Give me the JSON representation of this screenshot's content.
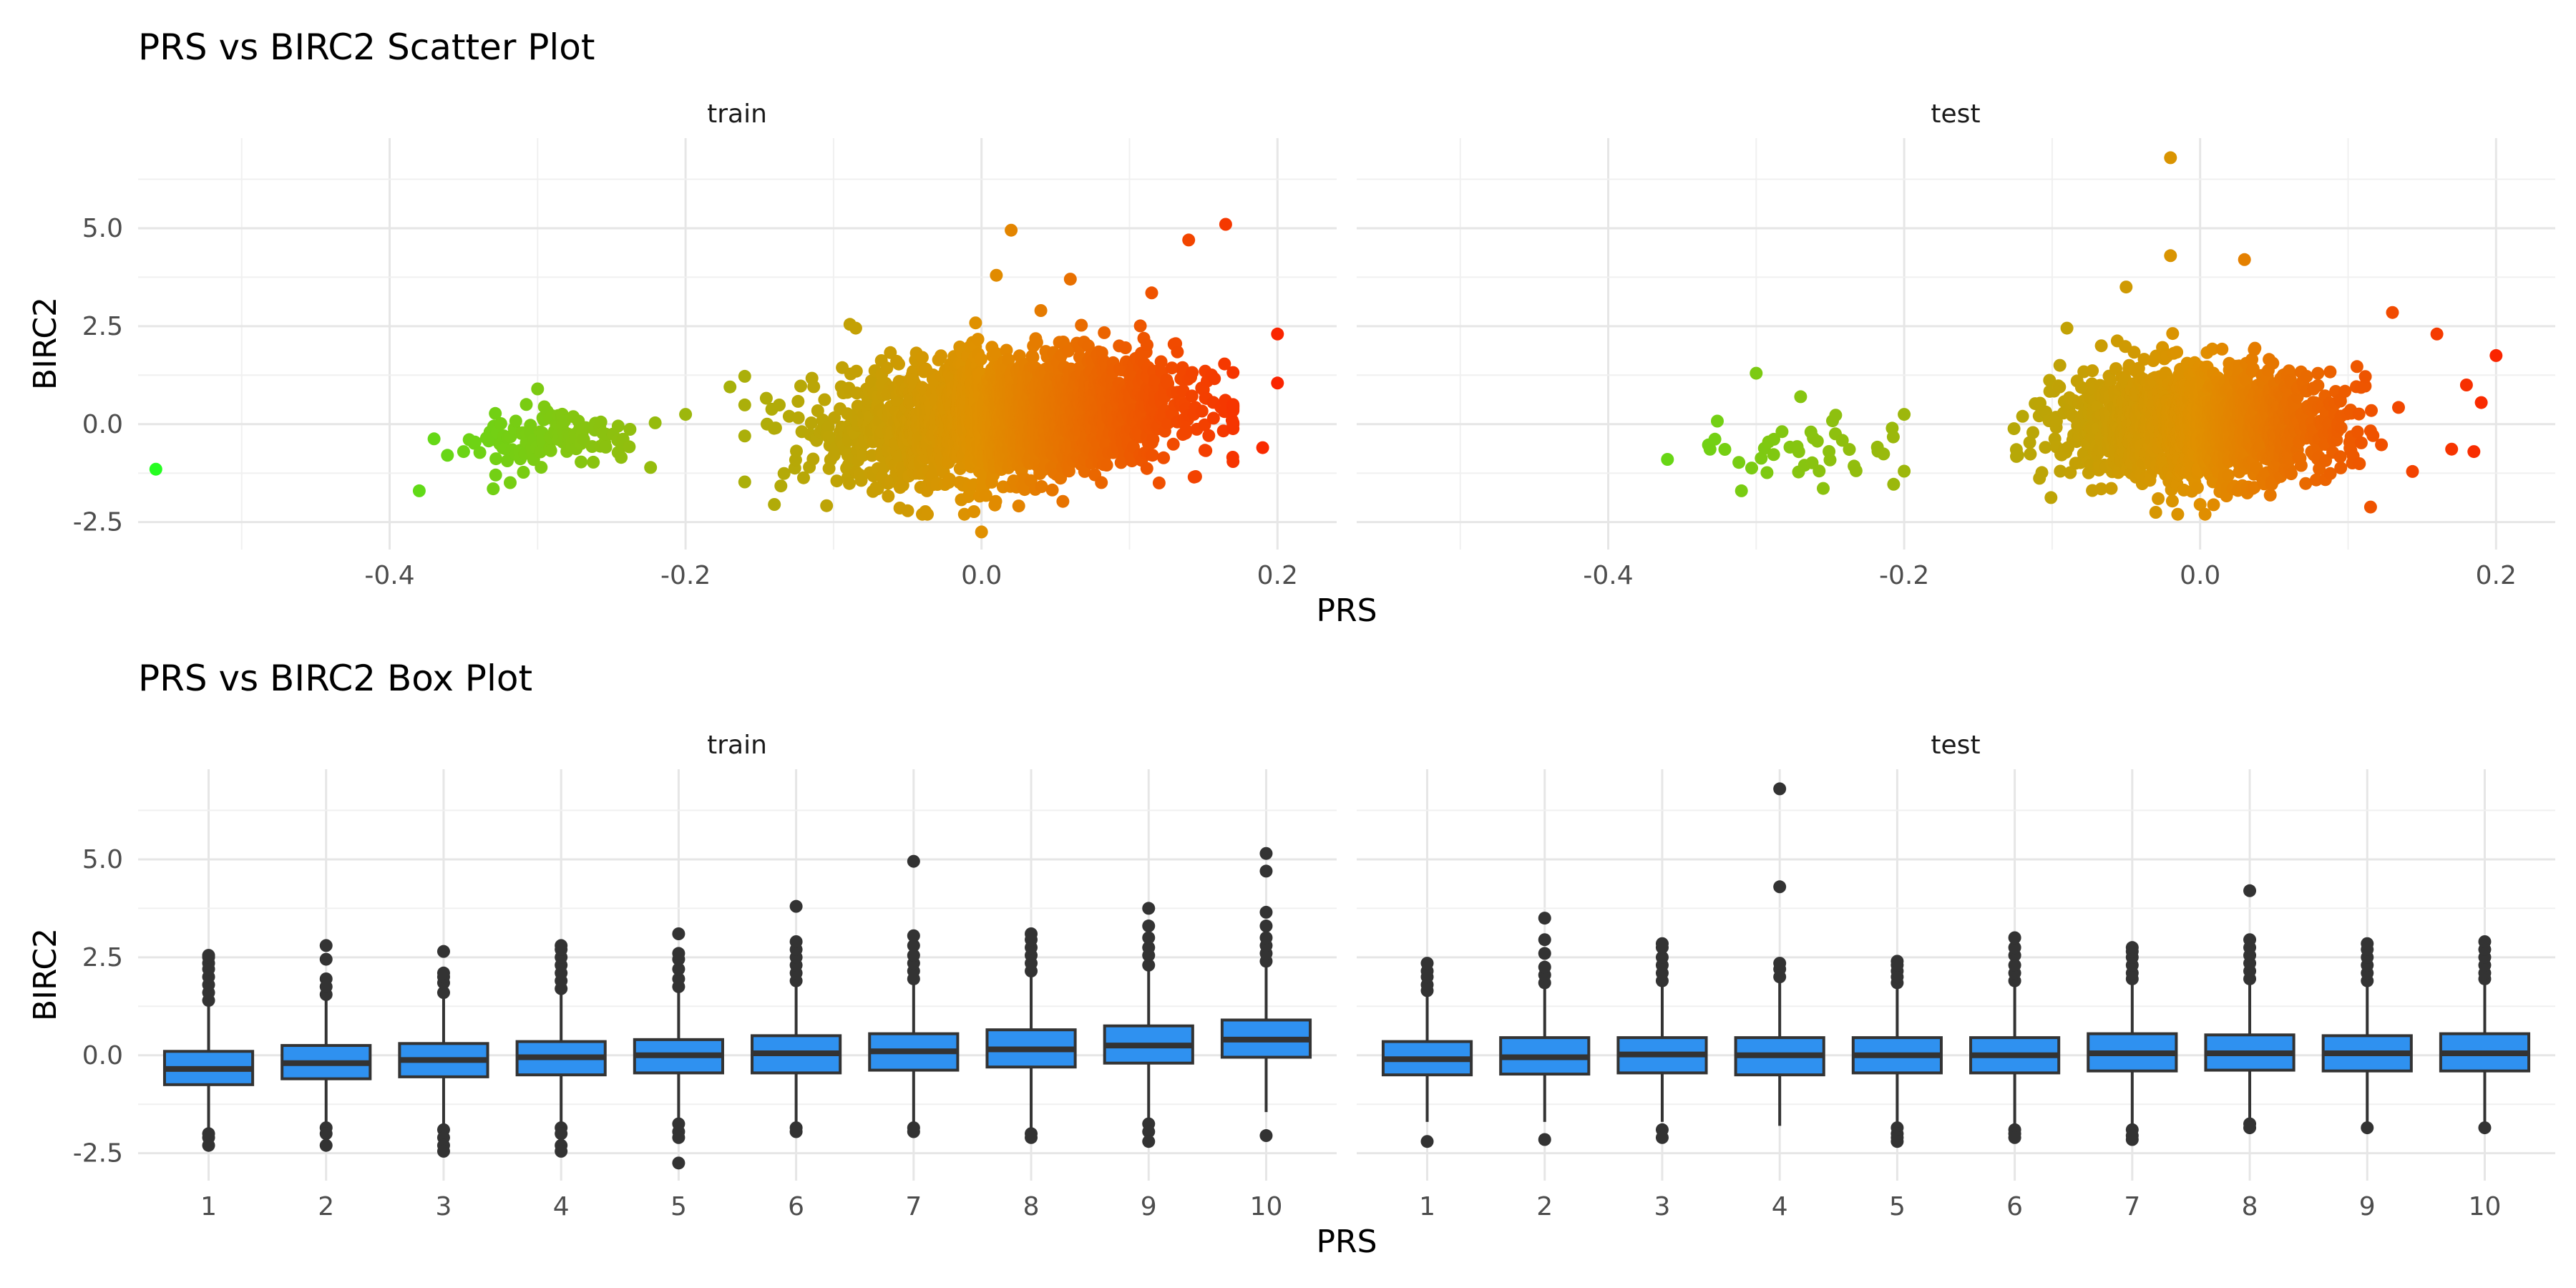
{
  "chart_data": [
    {
      "type": "scatter",
      "title": "PRS vs BIRC2 Scatter Plot",
      "xlabel": "PRS",
      "ylabel": "BIRC2",
      "facets": [
        "train",
        "test"
      ],
      "xlim": [
        -0.57,
        0.24
      ],
      "ylim": [
        -3.2,
        7.3
      ],
      "x_ticks": [
        -0.4,
        -0.2,
        0.0,
        0.2
      ],
      "x_tick_labels": [
        "-0.4",
        "-0.2",
        "0.0",
        "0.2"
      ],
      "y_ticks": [
        -2.5,
        0.0,
        2.5,
        5.0
      ],
      "y_tick_labels": [
        "-2.5",
        "0.0",
        "2.5",
        "5.0"
      ],
      "grid": true,
      "color_gradient": {
        "low": "#22ff22",
        "mid": "#e09000",
        "high": "#ff1000"
      },
      "clusters": {
        "train": [
          {
            "x_mean": 0.02,
            "x_sd": 0.055,
            "y_mean": 0.2,
            "y_sd": 0.75,
            "slope": 3.0
          },
          {
            "x_mean": -0.29,
            "x_sd": 0.03,
            "y_mean": -0.4,
            "y_sd": 0.35,
            "slope": 0.0
          }
        ],
        "test": [
          {
            "x_mean": 0.0,
            "x_sd": 0.045,
            "y_mean": 0.0,
            "y_sd": 0.7,
            "slope": 0.0
          },
          {
            "x_mean": -0.27,
            "x_sd": 0.04,
            "y_mean": -0.6,
            "y_sd": 0.45,
            "slope": 0.0
          }
        ]
      },
      "points": {
        "train": [
          {
            "x": -0.558,
            "y": -1.15
          },
          {
            "x": -0.38,
            "y": -1.7
          },
          {
            "x": -0.33,
            "y": -1.65
          },
          {
            "x": -0.35,
            "y": -0.7
          },
          {
            "x": -0.3,
            "y": 0.9
          },
          {
            "x": 0.02,
            "y": 4.95
          },
          {
            "x": 0.165,
            "y": 5.1
          },
          {
            "x": 0.14,
            "y": 4.7
          },
          {
            "x": 0.2,
            "y": 2.3
          },
          {
            "x": 0.2,
            "y": 1.05
          },
          {
            "x": 0.19,
            "y": -0.6
          },
          {
            "x": 0.12,
            "y": -1.5
          },
          {
            "x": 0.0,
            "y": -2.75
          },
          {
            "x": -0.04,
            "y": -2.3
          },
          {
            "x": 0.01,
            "y": 3.8
          },
          {
            "x": 0.06,
            "y": 3.7
          },
          {
            "x": 0.115,
            "y": 3.35
          },
          {
            "x": -0.085,
            "y": 2.45
          },
          {
            "x": -0.13,
            "y": 0.2
          },
          {
            "x": -0.2,
            "y": 0.25
          },
          {
            "x": -0.17,
            "y": 0.95
          },
          {
            "x": -0.14,
            "y": -2.05
          },
          {
            "x": 0.17,
            "y": 0.5
          }
        ],
        "test": [
          {
            "x": -0.02,
            "y": 6.8
          },
          {
            "x": -0.02,
            "y": 4.3
          },
          {
            "x": 0.03,
            "y": 4.2
          },
          {
            "x": -0.05,
            "y": 3.5
          },
          {
            "x": 0.13,
            "y": 2.85
          },
          {
            "x": 0.16,
            "y": 2.3
          },
          {
            "x": 0.2,
            "y": 1.75
          },
          {
            "x": 0.19,
            "y": 0.55
          },
          {
            "x": 0.185,
            "y": -0.7
          },
          {
            "x": 0.18,
            "y": 1.0
          },
          {
            "x": -0.36,
            "y": -0.9
          },
          {
            "x": -0.3,
            "y": 1.3
          },
          {
            "x": -0.27,
            "y": 0.7
          },
          {
            "x": -0.31,
            "y": -1.7
          },
          {
            "x": -0.2,
            "y": 0.25
          },
          {
            "x": -0.2,
            "y": -1.2
          },
          {
            "x": -0.12,
            "y": 0.2
          },
          {
            "x": -0.09,
            "y": 2.45
          },
          {
            "x": 0.0,
            "y": -2.05
          },
          {
            "x": -0.03,
            "y": -2.25
          }
        ]
      }
    },
    {
      "type": "box",
      "title": "PRS vs BIRC2 Box Plot",
      "xlabel": "PRS",
      "ylabel": "BIRC2",
      "facets": [
        "train",
        "test"
      ],
      "categories": [
        "1",
        "2",
        "3",
        "4",
        "5",
        "6",
        "7",
        "8",
        "9",
        "10"
      ],
      "ylim": [
        -3.2,
        7.3
      ],
      "y_ticks": [
        -2.5,
        0.0,
        2.5,
        5.0
      ],
      "y_tick_labels": [
        "-2.5",
        "0.0",
        "2.5",
        "5.0"
      ],
      "grid": true,
      "box_color": "#2f91f0",
      "boxes": {
        "train": [
          {
            "q1": -0.75,
            "median": -0.35,
            "q3": 0.1,
            "whisker_low": -1.95,
            "whisker_high": 1.3,
            "outliers": [
              -2.0,
              -2.1,
              -2.3,
              1.4,
              1.6,
              1.8,
              2.0,
              2.2,
              2.35,
              2.5,
              2.55
            ]
          },
          {
            "q1": -0.6,
            "median": -0.2,
            "q3": 0.25,
            "whisker_low": -1.75,
            "whisker_high": 1.45,
            "outliers": [
              -1.85,
              -2.0,
              -2.3,
              1.55,
              1.75,
              1.95,
              2.45,
              2.8
            ]
          },
          {
            "q1": -0.55,
            "median": -0.12,
            "q3": 0.3,
            "whisker_low": -1.75,
            "whisker_high": 1.5,
            "outliers": [
              -1.9,
              -2.1,
              -2.3,
              -2.45,
              1.6,
              1.85,
              2.0,
              2.1,
              2.65
            ]
          },
          {
            "q1": -0.5,
            "median": -0.05,
            "q3": 0.35,
            "whisker_low": -1.75,
            "whisker_high": 1.6,
            "outliers": [
              -1.85,
              -2.0,
              -2.3,
              -2.45,
              1.7,
              1.9,
              2.1,
              2.3,
              2.5,
              2.7,
              2.8
            ]
          },
          {
            "q1": -0.45,
            "median": 0.0,
            "q3": 0.4,
            "whisker_low": -1.65,
            "whisker_high": 1.65,
            "outliers": [
              -1.75,
              -1.95,
              -2.1,
              -2.75,
              1.75,
              1.95,
              2.2,
              2.45,
              2.6,
              3.1
            ]
          },
          {
            "q1": -0.45,
            "median": 0.05,
            "q3": 0.5,
            "whisker_low": -1.75,
            "whisker_high": 1.8,
            "outliers": [
              -1.85,
              -1.95,
              1.9,
              2.1,
              2.3,
              2.5,
              2.7,
              2.9,
              3.8
            ]
          },
          {
            "q1": -0.38,
            "median": 0.1,
            "q3": 0.55,
            "whisker_low": -1.75,
            "whisker_high": 1.85,
            "outliers": [
              -1.85,
              -1.95,
              1.95,
              2.15,
              2.35,
              2.55,
              2.8,
              3.05,
              4.95
            ]
          },
          {
            "q1": -0.3,
            "median": 0.15,
            "q3": 0.65,
            "whisker_low": -1.9,
            "whisker_high": 2.05,
            "outliers": [
              -2.0,
              -2.1,
              2.15,
              2.35,
              2.55,
              2.75,
              2.95,
              3.1
            ]
          },
          {
            "q1": -0.2,
            "median": 0.25,
            "q3": 0.75,
            "whisker_low": -1.65,
            "whisker_high": 2.15,
            "outliers": [
              -1.75,
              -1.95,
              -2.2,
              2.3,
              2.55,
              2.75,
              3.0,
              3.3,
              3.75
            ]
          },
          {
            "q1": -0.05,
            "median": 0.4,
            "q3": 0.9,
            "whisker_low": -1.45,
            "whisker_high": 2.3,
            "outliers": [
              -2.05,
              2.4,
              2.6,
              2.8,
              3.0,
              3.3,
              3.65,
              4.7,
              5.15
            ]
          }
        ],
        "test": [
          {
            "q1": -0.5,
            "median": -0.1,
            "q3": 0.35,
            "whisker_low": -1.7,
            "whisker_high": 1.55,
            "outliers": [
              -2.2,
              1.65,
              1.8,
              2.0,
              2.15,
              2.35
            ]
          },
          {
            "q1": -0.48,
            "median": -0.05,
            "q3": 0.45,
            "whisker_low": -1.7,
            "whisker_high": 1.75,
            "outliers": [
              -2.15,
              1.85,
              2.05,
              2.25,
              2.6,
              2.95,
              3.5
            ]
          },
          {
            "q1": -0.45,
            "median": 0.02,
            "q3": 0.45,
            "whisker_low": -1.7,
            "whisker_high": 1.8,
            "outliers": [
              -1.9,
              -2.1,
              1.9,
              2.1,
              2.3,
              2.5,
              2.75,
              2.85
            ]
          },
          {
            "q1": -0.5,
            "median": 0.0,
            "q3": 0.45,
            "whisker_low": -1.8,
            "whisker_high": 1.9,
            "outliers": [
              2.0,
              2.2,
              2.35,
              4.3,
              6.8
            ]
          },
          {
            "q1": -0.45,
            "median": 0.0,
            "q3": 0.45,
            "whisker_low": -1.75,
            "whisker_high": 1.75,
            "outliers": [
              -1.85,
              -2.0,
              -2.1,
              -2.2,
              1.85,
              2.0,
              2.15,
              2.3,
              2.4
            ]
          },
          {
            "q1": -0.45,
            "median": 0.0,
            "q3": 0.45,
            "whisker_low": -1.75,
            "whisker_high": 1.8,
            "outliers": [
              -1.9,
              -2.0,
              -2.1,
              1.9,
              2.1,
              2.3,
              2.55,
              2.75,
              3.0
            ]
          },
          {
            "q1": -0.4,
            "median": 0.05,
            "q3": 0.55,
            "whisker_low": -1.75,
            "whisker_high": 1.85,
            "outliers": [
              -1.9,
              -2.05,
              -2.15,
              1.95,
              2.1,
              2.3,
              2.5,
              2.65,
              2.75
            ]
          },
          {
            "q1": -0.38,
            "median": 0.05,
            "q3": 0.52,
            "whisker_low": -1.65,
            "whisker_high": 1.85,
            "outliers": [
              -1.75,
              -1.85,
              1.95,
              2.15,
              2.35,
              2.55,
              2.75,
              2.95,
              4.2
            ]
          },
          {
            "q1": -0.4,
            "median": 0.05,
            "q3": 0.5,
            "whisker_low": -1.75,
            "whisker_high": 1.8,
            "outliers": [
              -1.85,
              1.9,
              2.1,
              2.3,
              2.5,
              2.7,
              2.85
            ]
          },
          {
            "q1": -0.4,
            "median": 0.05,
            "q3": 0.55,
            "whisker_low": -1.75,
            "whisker_high": 1.85,
            "outliers": [
              -1.85,
              1.95,
              2.1,
              2.3,
              2.5,
              2.7,
              2.9
            ]
          }
        ]
      }
    }
  ]
}
